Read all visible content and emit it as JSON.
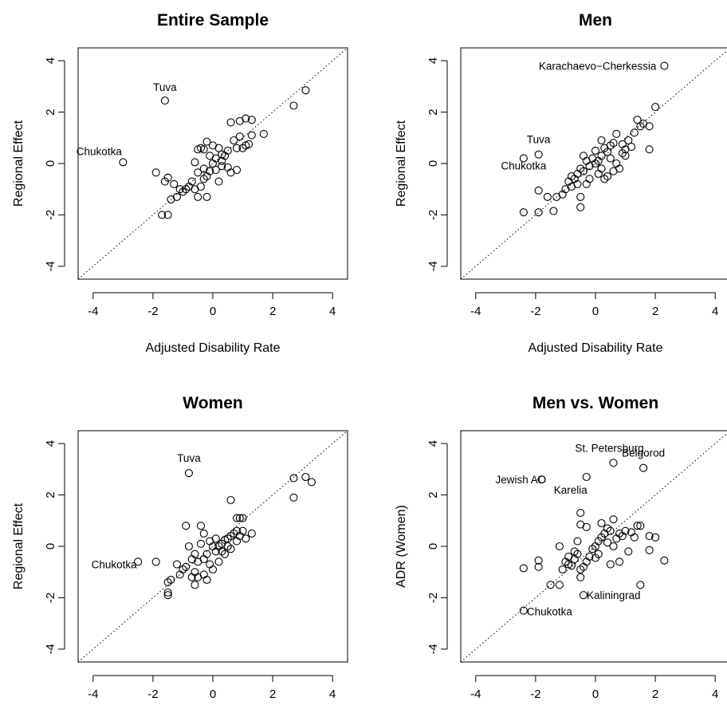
{
  "chart_data": [
    {
      "type": "scatter",
      "title": "Entire Sample",
      "xlabel": "Adjusted Disability Rate",
      "ylabel": "Regional Effect",
      "xlim": [
        -4.5,
        4.5
      ],
      "ylim": [
        -4.5,
        4.5
      ],
      "xticks": [
        -4,
        -2,
        0,
        2,
        4
      ],
      "yticks": [
        -4,
        -2,
        0,
        2,
        4
      ],
      "reference_line": "y = x (dotted)",
      "grid": false,
      "annotations": [
        {
          "text": "Tuva",
          "x": -1.6,
          "y": 2.45
        },
        {
          "text": "Chukotka",
          "x": -3.0,
          "y": 0.05
        }
      ],
      "points": [
        [
          -1.6,
          2.45
        ],
        [
          -3.0,
          0.05
        ],
        [
          3.1,
          2.85
        ],
        [
          2.7,
          2.25
        ],
        [
          1.7,
          1.15
        ],
        [
          1.3,
          1.7
        ],
        [
          1.1,
          1.75
        ],
        [
          0.9,
          1.65
        ],
        [
          0.6,
          1.6
        ],
        [
          1.3,
          1.1
        ],
        [
          1.2,
          0.75
        ],
        [
          1.0,
          0.6
        ],
        [
          0.9,
          1.05
        ],
        [
          0.8,
          0.6
        ],
        [
          0.7,
          0.9
        ],
        [
          0.5,
          0.5
        ],
        [
          0.4,
          0.3
        ],
        [
          0.3,
          0.1
        ],
        [
          0.2,
          0.6
        ],
        [
          0.1,
          0.2
        ],
        [
          0.0,
          0.0
        ],
        [
          -0.1,
          0.3
        ],
        [
          -0.2,
          0.85
        ],
        [
          -0.3,
          0.55
        ],
        [
          -0.4,
          0.6
        ],
        [
          -0.5,
          0.55
        ],
        [
          -0.6,
          0.05
        ],
        [
          -0.5,
          -0.35
        ],
        [
          -0.3,
          -0.2
        ],
        [
          -0.2,
          -0.5
        ],
        [
          -0.1,
          -0.3
        ],
        [
          0.1,
          -0.25
        ],
        [
          0.3,
          -0.1
        ],
        [
          0.5,
          -0.15
        ],
        [
          0.6,
          -0.35
        ],
        [
          0.8,
          -0.25
        ],
        [
          -0.7,
          -0.7
        ],
        [
          -0.8,
          -0.9
        ],
        [
          -0.9,
          -1.0
        ],
        [
          -1.0,
          -1.1
        ],
        [
          -1.1,
          -1.0
        ],
        [
          -1.2,
          -1.3
        ],
        [
          -1.3,
          -0.8
        ],
        [
          -1.4,
          -1.4
        ],
        [
          -1.5,
          -0.55
        ],
        [
          -1.6,
          -0.7
        ],
        [
          -1.9,
          -0.35
        ],
        [
          -1.5,
          -2.0
        ],
        [
          -1.7,
          -2.0
        ],
        [
          -0.4,
          -0.9
        ],
        [
          -0.5,
          -1.3
        ],
        [
          -0.2,
          -1.3
        ],
        [
          -0.6,
          -1.0
        ],
        [
          -0.3,
          -0.6
        ],
        [
          0.2,
          -0.7
        ],
        [
          1.1,
          0.7
        ],
        [
          0.0,
          0.7
        ],
        [
          0.3,
          0.35
        ]
      ]
    },
    {
      "type": "scatter",
      "title": "Men",
      "xlabel": "Adjusted Disability Rate",
      "ylabel": "Regional Effect",
      "xlim": [
        -4.5,
        4.5
      ],
      "ylim": [
        -4.5,
        4.5
      ],
      "xticks": [
        -4,
        -2,
        0,
        2,
        4
      ],
      "yticks": [
        -4,
        -2,
        0,
        2,
        4
      ],
      "reference_line": "y = x (dotted)",
      "grid": false,
      "annotations": [
        {
          "text": "Karachaevo−Cherkessia",
          "x": 2.3,
          "y": 3.8
        },
        {
          "text": "Tuva",
          "x": -1.9,
          "y": 0.35
        },
        {
          "text": "Chukotka",
          "x": -2.4,
          "y": 0.2
        }
      ],
      "points": [
        [
          2.3,
          3.8
        ],
        [
          -1.9,
          0.35
        ],
        [
          -2.4,
          0.2
        ],
        [
          2.0,
          2.2
        ],
        [
          1.8,
          1.45
        ],
        [
          1.8,
          0.55
        ],
        [
          1.6,
          1.55
        ],
        [
          1.5,
          1.45
        ],
        [
          1.4,
          1.7
        ],
        [
          1.3,
          1.2
        ],
        [
          1.2,
          0.65
        ],
        [
          1.1,
          0.9
        ],
        [
          1.0,
          0.55
        ],
        [
          0.9,
          0.75
        ],
        [
          0.7,
          1.15
        ],
        [
          0.6,
          0.8
        ],
        [
          0.5,
          0.7
        ],
        [
          0.4,
          0.45
        ],
        [
          0.3,
          0.6
        ],
        [
          0.2,
          0.3
        ],
        [
          0.1,
          0.1
        ],
        [
          0.0,
          0.0
        ],
        [
          -0.1,
          0.2
        ],
        [
          -0.2,
          -0.1
        ],
        [
          -0.3,
          0.1
        ],
        [
          -0.4,
          -0.3
        ],
        [
          -0.5,
          -0.2
        ],
        [
          -0.6,
          -0.4
        ],
        [
          -0.7,
          -0.6
        ],
        [
          -0.8,
          -0.9
        ],
        [
          -0.9,
          -0.7
        ],
        [
          -1.0,
          -1.0
        ],
        [
          -1.1,
          -1.2
        ],
        [
          -1.3,
          -1.3
        ],
        [
          -1.9,
          -1.05
        ],
        [
          -1.6,
          -1.3
        ],
        [
          -1.9,
          -1.9
        ],
        [
          -2.4,
          -1.9
        ],
        [
          -1.4,
          -1.85
        ],
        [
          -0.5,
          -1.7
        ],
        [
          -0.5,
          -1.3
        ],
        [
          0.1,
          -0.4
        ],
        [
          0.2,
          -0.2
        ],
        [
          0.3,
          -0.6
        ],
        [
          0.4,
          -0.5
        ],
        [
          0.6,
          -0.3
        ],
        [
          0.8,
          -0.2
        ],
        [
          -0.2,
          -0.6
        ],
        [
          -0.3,
          -0.8
        ],
        [
          -0.4,
          0.3
        ],
        [
          0.0,
          0.5
        ],
        [
          0.5,
          0.2
        ],
        [
          0.9,
          0.4
        ],
        [
          1.0,
          0.3
        ],
        [
          0.7,
          0.0
        ],
        [
          -0.6,
          -0.8
        ],
        [
          -0.8,
          -0.5
        ],
        [
          0.2,
          0.9
        ]
      ]
    },
    {
      "type": "scatter",
      "title": "Women",
      "xlabel": "Adjusted Disability Rate",
      "ylabel": "Regional Effect",
      "xlim": [
        -4.5,
        4.5
      ],
      "ylim": [
        -4.5,
        4.5
      ],
      "xticks": [
        -4,
        -2,
        0,
        2,
        4
      ],
      "yticks": [
        -4,
        -2,
        0,
        2,
        4
      ],
      "reference_line": "y = x (dotted)",
      "grid": false,
      "annotations": [
        {
          "text": "Tuva",
          "x": -0.8,
          "y": 2.85
        },
        {
          "text": "Chukotka",
          "x": -2.5,
          "y": -0.6
        }
      ],
      "points": [
        [
          -0.8,
          2.85
        ],
        [
          -2.5,
          -0.6
        ],
        [
          -1.9,
          -0.6
        ],
        [
          3.3,
          2.5
        ],
        [
          3.1,
          2.7
        ],
        [
          2.7,
          2.65
        ],
        [
          2.7,
          1.9
        ],
        [
          0.6,
          1.8
        ],
        [
          0.9,
          1.1
        ],
        [
          0.8,
          1.1
        ],
        [
          1.3,
          0.5
        ],
        [
          1.1,
          0.3
        ],
        [
          1.0,
          0.6
        ],
        [
          0.9,
          0.4
        ],
        [
          0.8,
          0.2
        ],
        [
          0.6,
          0.4
        ],
        [
          0.5,
          0.3
        ],
        [
          0.4,
          0.25
        ],
        [
          0.3,
          0.1
        ],
        [
          0.2,
          0.0
        ],
        [
          0.1,
          -0.2
        ],
        [
          0.0,
          0.0
        ],
        [
          -0.1,
          0.2
        ],
        [
          -0.2,
          -0.3
        ],
        [
          -0.3,
          -0.5
        ],
        [
          -0.4,
          0.8
        ],
        [
          -0.5,
          -0.6
        ],
        [
          -0.6,
          -0.3
        ],
        [
          -0.7,
          -0.5
        ],
        [
          -0.8,
          0.0
        ],
        [
          -0.9,
          0.8
        ],
        [
          -1.0,
          -0.9
        ],
        [
          -1.1,
          -1.1
        ],
        [
          -1.2,
          -0.7
        ],
        [
          -1.4,
          -1.3
        ],
        [
          -1.5,
          -1.4
        ],
        [
          -1.5,
          -1.9
        ],
        [
          -1.5,
          -1.8
        ],
        [
          -0.6,
          -1.0
        ],
        [
          -0.5,
          -1.2
        ],
        [
          -0.3,
          -1.1
        ],
        [
          -0.2,
          -1.3
        ],
        [
          0.0,
          -0.9
        ],
        [
          0.2,
          -0.6
        ],
        [
          0.4,
          -0.3
        ],
        [
          0.6,
          -0.1
        ],
        [
          0.8,
          0.6
        ],
        [
          -0.3,
          0.5
        ],
        [
          -0.4,
          0.1
        ],
        [
          -0.1,
          -0.7
        ],
        [
          0.1,
          0.3
        ],
        [
          0.3,
          -0.2
        ],
        [
          -0.6,
          -1.5
        ],
        [
          -0.7,
          -1.2
        ],
        [
          -0.9,
          -0.8
        ],
        [
          0.7,
          0.5
        ],
        [
          1.0,
          1.1
        ],
        [
          0.5,
          0.0
        ]
      ]
    },
    {
      "type": "scatter",
      "title": "Men vs. Women",
      "xlabel": "ADR (Men)",
      "ylabel": "ADR (Women)",
      "xlim": [
        -4.5,
        4.5
      ],
      "ylim": [
        -4.5,
        4.5
      ],
      "xticks": [
        -4,
        -2,
        0,
        2,
        4
      ],
      "yticks": [
        -4,
        -2,
        0,
        2,
        4
      ],
      "reference_line": "y = x (dotted)",
      "grid": false,
      "annotations": [
        {
          "text": "St. Petersburg",
          "x": 0.6,
          "y": 3.25
        },
        {
          "text": "Belgorod",
          "x": 1.6,
          "y": 3.05
        },
        {
          "text": "Karelia",
          "x": -0.3,
          "y": 2.7
        },
        {
          "text": "Jewish AO",
          "x": -1.8,
          "y": 2.6
        },
        {
          "text": "Kaliningrad",
          "x": -0.4,
          "y": -1.9
        },
        {
          "text": "Chukotka",
          "x": -2.4,
          "y": -2.5
        }
      ],
      "points": [
        [
          0.6,
          3.25
        ],
        [
          1.6,
          3.05
        ],
        [
          -0.3,
          2.7
        ],
        [
          -1.8,
          2.6
        ],
        [
          -0.4,
          -1.9
        ],
        [
          -2.4,
          -2.5
        ],
        [
          2.3,
          -0.55
        ],
        [
          1.5,
          -1.5
        ],
        [
          -2.4,
          -0.85
        ],
        [
          -1.9,
          -0.8
        ],
        [
          -1.9,
          -0.55
        ],
        [
          -1.5,
          -1.5
        ],
        [
          -1.2,
          -1.5
        ],
        [
          -1.1,
          -0.9
        ],
        [
          -1.0,
          -0.6
        ],
        [
          -0.9,
          -0.4
        ],
        [
          -0.8,
          -0.75
        ],
        [
          -0.7,
          -0.5
        ],
        [
          -0.6,
          -0.3
        ],
        [
          -0.5,
          -0.9
        ],
        [
          -0.4,
          -0.8
        ],
        [
          -0.3,
          -0.6
        ],
        [
          -0.2,
          -0.4
        ],
        [
          -0.1,
          -0.1
        ],
        [
          0.0,
          0.0
        ],
        [
          0.1,
          0.2
        ],
        [
          0.2,
          0.35
        ],
        [
          0.3,
          0.5
        ],
        [
          0.4,
          0.7
        ],
        [
          0.5,
          0.6
        ],
        [
          0.6,
          1.05
        ],
        [
          0.7,
          0.3
        ],
        [
          0.8,
          0.5
        ],
        [
          0.9,
          0.4
        ],
        [
          1.0,
          0.6
        ],
        [
          1.1,
          -0.2
        ],
        [
          1.2,
          0.55
        ],
        [
          1.3,
          0.35
        ],
        [
          1.4,
          0.8
        ],
        [
          1.5,
          0.8
        ],
        [
          1.8,
          0.4
        ],
        [
          2.0,
          0.35
        ],
        [
          1.8,
          -0.15
        ],
        [
          -0.5,
          1.3
        ],
        [
          -0.5,
          0.85
        ],
        [
          -0.6,
          0.2
        ],
        [
          -1.2,
          0.0
        ],
        [
          -0.9,
          -0.7
        ],
        [
          -0.5,
          -1.2
        ],
        [
          0.0,
          -0.45
        ],
        [
          0.5,
          -0.7
        ],
        [
          0.8,
          -0.6
        ],
        [
          0.2,
          0.9
        ],
        [
          -0.3,
          0.75
        ],
        [
          0.1,
          -0.3
        ],
        [
          0.4,
          0.15
        ],
        [
          -0.7,
          -0.2
        ],
        [
          0.6,
          0.0
        ]
      ]
    }
  ]
}
